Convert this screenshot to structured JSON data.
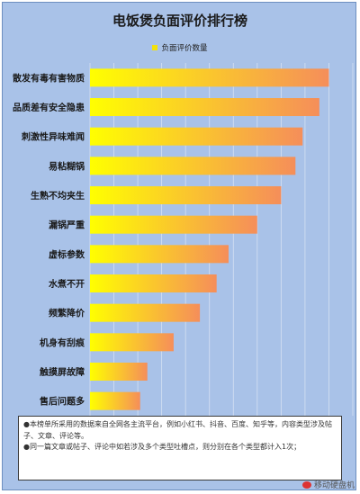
{
  "chart_data": {
    "type": "bar",
    "orientation": "horizontal",
    "title": "电饭煲负面评价排行榜",
    "legend": {
      "label": "负面评价数量",
      "position": "top"
    },
    "categories": [
      "散发有毒有害物质",
      "品质差有安全隐患",
      "刺激性异味难闻",
      "易粘糊锅",
      "生熟不均夹生",
      "漏锅严重",
      "虚标参数",
      "水煮不开",
      "频繁降价",
      "机身有刮痕",
      "触摸屏故障",
      "售后问题多"
    ],
    "values": [
      100,
      96,
      89,
      86,
      80,
      70,
      58,
      53,
      46,
      35,
      24,
      21
    ],
    "xlim": [
      0,
      110
    ],
    "grid": true,
    "colors": {
      "bar_start": "#ffff00",
      "bar_end": "#f58e5a",
      "grid": "#d6e1f2"
    }
  },
  "note": {
    "line1": "●本榜单所采用的数据来自全网各主流平台，例如小红书、抖音、百度、知乎等，内容类型涉及帖子、文章、评论等。",
    "line2": "●同一篇文章或帖子、评论中如若涉及多个类型吐槽点，则分别在各个类型都计入1次；"
  },
  "watermark": "移动硬盘机"
}
